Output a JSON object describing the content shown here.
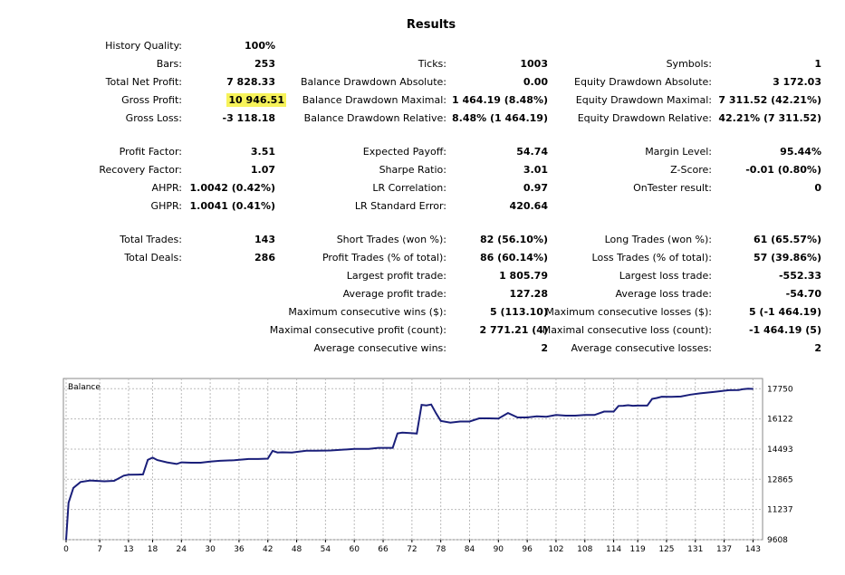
{
  "title": "Results",
  "rows": {
    "history_quality": {
      "label": "History Quality:",
      "value": "100%"
    },
    "bars": {
      "label": "Bars:",
      "value": "253"
    },
    "total_net_profit": {
      "label": "Total Net Profit:",
      "value": "7 828.33"
    },
    "gross_profit": {
      "label": "Gross Profit:",
      "value": "10 946.51",
      "highlight_color": "#f7f35a"
    },
    "gross_loss": {
      "label": "Gross Loss:",
      "value": "-3 118.18"
    },
    "ticks": {
      "label": "Ticks:",
      "value": "1003"
    },
    "balance_dd_abs": {
      "label": "Balance Drawdown Absolute:",
      "value": "0.00"
    },
    "balance_dd_max": {
      "label": "Balance Drawdown Maximal:",
      "value": "1 464.19 (8.48%)"
    },
    "balance_dd_rel": {
      "label": "Balance Drawdown Relative:",
      "value": "8.48% (1 464.19)"
    },
    "symbols": {
      "label": "Symbols:",
      "value": "1"
    },
    "equity_dd_abs": {
      "label": "Equity Drawdown Absolute:",
      "value": "3 172.03"
    },
    "equity_dd_max": {
      "label": "Equity Drawdown Maximal:",
      "value": "7 311.52 (42.21%)"
    },
    "equity_dd_rel": {
      "label": "Equity Drawdown Relative:",
      "value": "42.21% (7 311.52)"
    },
    "profit_factor": {
      "label": "Profit Factor:",
      "value": "3.51"
    },
    "recovery_factor": {
      "label": "Recovery Factor:",
      "value": "1.07"
    },
    "ahpr": {
      "label": "AHPR:",
      "value": "1.0042 (0.42%)"
    },
    "ghpr": {
      "label": "GHPR:",
      "value": "1.0041 (0.41%)"
    },
    "expected_payoff": {
      "label": "Expected Payoff:",
      "value": "54.74"
    },
    "sharpe_ratio": {
      "label": "Sharpe Ratio:",
      "value": "3.01"
    },
    "lr_correlation": {
      "label": "LR Correlation:",
      "value": "0.97"
    },
    "lr_std_error": {
      "label": "LR Standard Error:",
      "value": "420.64"
    },
    "margin_level": {
      "label": "Margin Level:",
      "value": "95.44%"
    },
    "z_score": {
      "label": "Z-Score:",
      "value": "-0.01 (0.80%)"
    },
    "ontester": {
      "label": "OnTester result:",
      "value": "0"
    },
    "total_trades": {
      "label": "Total Trades:",
      "value": "143"
    },
    "total_deals": {
      "label": "Total Deals:",
      "value": "286"
    },
    "short_trades": {
      "label": "Short Trades (won %):",
      "value": "82 (56.10%)"
    },
    "profit_trades": {
      "label": "Profit Trades (% of total):",
      "value": "86 (60.14%)"
    },
    "largest_profit": {
      "label": "Largest profit trade:",
      "value": "1 805.79"
    },
    "average_profit": {
      "label": "Average profit trade:",
      "value": "127.28"
    },
    "max_consec_wins": {
      "label": "Maximum consecutive wins ($):",
      "value": "5 (113.10)"
    },
    "maximal_consec_profit": {
      "label": "Maximal consecutive profit (count):",
      "value": "2 771.21 (4)"
    },
    "avg_consec_wins": {
      "label": "Average consecutive wins:",
      "value": "2"
    },
    "long_trades": {
      "label": "Long Trades (won %):",
      "value": "61 (65.57%)"
    },
    "loss_trades": {
      "label": "Loss Trades (% of total):",
      "value": "57 (39.86%)"
    },
    "largest_loss": {
      "label": "Largest loss trade:",
      "value": "-552.33"
    },
    "average_loss": {
      "label": "Average loss trade:",
      "value": "-54.70"
    },
    "max_consec_losses": {
      "label": "Maximum consecutive losses ($):",
      "value": "5 (-1 464.19)"
    },
    "maximal_consec_loss": {
      "label": "Maximal consecutive loss (count):",
      "value": "-1 464.19 (5)"
    },
    "avg_consec_losses": {
      "label": "Average consecutive losses:",
      "value": "2"
    }
  },
  "chart_data": {
    "type": "line",
    "legend": "Balance",
    "line_color": "#1a1f7a",
    "grid": true,
    "xlim": [
      0,
      145
    ],
    "ylim": [
      9608,
      18300
    ],
    "x_ticks": [
      "0",
      "7",
      "13",
      "18",
      "24",
      "30",
      "36",
      "42",
      "48",
      "54",
      "60",
      "66",
      "72",
      "78",
      "84",
      "90",
      "96",
      "102",
      "108",
      "114",
      "119",
      "125",
      "131",
      "137",
      "143"
    ],
    "y_ticks": [
      "17750",
      "16122",
      "14493",
      "12865",
      "11237",
      "9608"
    ],
    "series": [
      {
        "x": [
          0,
          0.5,
          1.5,
          3,
          5,
          7,
          8,
          10,
          12,
          13,
          15,
          16,
          17,
          18,
          19,
          21,
          23,
          24,
          26,
          28,
          30,
          32,
          35,
          38,
          40,
          42,
          43,
          44,
          45,
          47,
          50,
          52,
          55,
          60,
          62,
          63,
          65,
          68,
          69,
          70,
          72,
          73,
          74,
          75,
          76,
          77,
          78,
          80,
          82,
          84,
          86,
          88,
          90,
          92,
          94,
          96,
          98,
          99,
          100,
          102,
          104,
          106,
          108,
          110,
          112,
          114,
          115,
          116,
          117,
          118,
          119,
          121,
          122,
          123,
          124,
          126,
          128,
          130,
          132,
          135,
          138,
          140,
          141,
          142,
          143
        ],
        "y": [
          9608,
          11600,
          12400,
          12720,
          12800,
          12770,
          12760,
          12780,
          13060,
          13110,
          13120,
          13130,
          13910,
          14030,
          13900,
          13780,
          13690,
          13780,
          13760,
          13760,
          13820,
          13860,
          13890,
          13960,
          13960,
          13980,
          14400,
          14310,
          14320,
          14310,
          14410,
          14410,
          14420,
          14500,
          14500,
          14500,
          14560,
          14560,
          15340,
          15380,
          15350,
          15330,
          16880,
          16850,
          16900,
          16430,
          16010,
          15920,
          15980,
          15980,
          16150,
          16150,
          16140,
          16440,
          16200,
          16200,
          16260,
          16250,
          16240,
          16330,
          16300,
          16300,
          16330,
          16330,
          16520,
          16520,
          16820,
          16830,
          16860,
          16830,
          16840,
          16840,
          17200,
          17250,
          17320,
          17310,
          17330,
          17430,
          17500,
          17580,
          17670,
          17680,
          17730,
          17750,
          17740
        ]
      }
    ]
  }
}
